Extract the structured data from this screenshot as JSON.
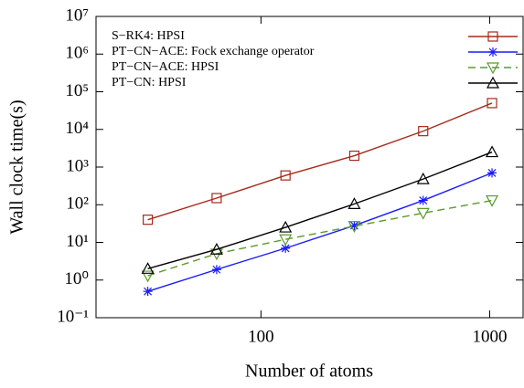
{
  "chart_data": {
    "type": "line",
    "x_label": "Number of atoms",
    "y_label": "Wall clock time(s)",
    "log_x": true,
    "log_y": true,
    "x": [
      32,
      64,
      128,
      256,
      512,
      1024
    ],
    "xlim": [
      19,
      1400
    ],
    "xticks": [
      100,
      1000
    ],
    "ylim": [
      0.1,
      10000000
    ],
    "yticks": [
      {
        "value": 0.1,
        "label": "10⁻¹"
      },
      {
        "value": 1,
        "label": "10⁰"
      },
      {
        "value": 10,
        "label": "10¹"
      },
      {
        "value": 100,
        "label": "10²"
      },
      {
        "value": 1000,
        "label": "10³"
      },
      {
        "value": 10000,
        "label": "10⁴"
      },
      {
        "value": 100000,
        "label": "10⁵"
      },
      {
        "value": 1000000,
        "label": "10⁶"
      },
      {
        "value": 10000000,
        "label": "10⁷"
      }
    ],
    "series": [
      {
        "name": "S−RK4: HPSI",
        "color": "#a52a1a",
        "marker": "square",
        "dash": false,
        "values": [
          40,
          150,
          600,
          2000,
          9000,
          50000
        ]
      },
      {
        "name": "PT−CN−ACE: Fock exchange operator",
        "color": "#1a1aff",
        "marker": "asterisk",
        "dash": false,
        "values": [
          0.5,
          1.9,
          7,
          28,
          130,
          700
        ]
      },
      {
        "name": "PT−CN−ACE: HPSI",
        "color": "#5a9a2a",
        "marker": "triangle-down",
        "dash": true,
        "values": [
          1.3,
          5,
          12,
          27,
          60,
          130
        ]
      },
      {
        "name": "PT−CN: HPSI",
        "color": "#000000",
        "marker": "triangle-up",
        "dash": false,
        "values": [
          2,
          6.5,
          25,
          105,
          480,
          2500
        ]
      }
    ]
  }
}
